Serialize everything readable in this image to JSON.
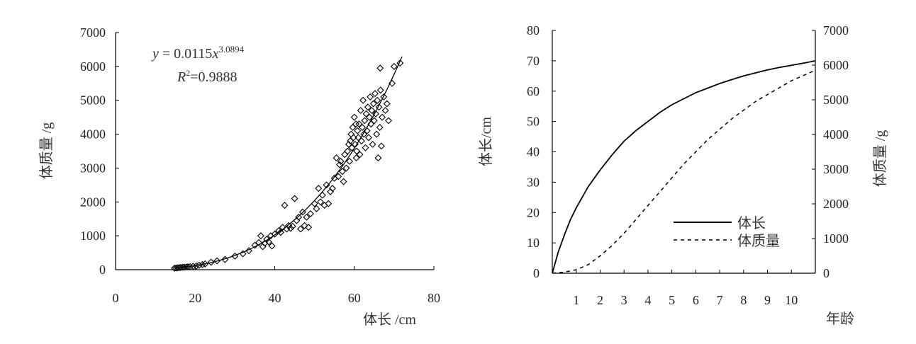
{
  "chart_data": [
    {
      "type": "scatter",
      "xlabel": "体长 /cm",
      "ylabel": "体质量 /g",
      "xlim": [
        0,
        80
      ],
      "ylim": [
        0,
        7000
      ],
      "xticks": [
        "0",
        "20",
        "40",
        "60",
        "80"
      ],
      "yticks": [
        "0",
        "1000",
        "2000",
        "3000",
        "4000",
        "5000",
        "6000",
        "7000"
      ],
      "equation_lhs": "y",
      "equation_eq": " = 0.0115",
      "equation_var": "x",
      "equation_exp": "3.0894",
      "r2_label": "R",
      "r2_exp": "2",
      "r2_value": "=0.9888",
      "fit": {
        "a": 0.0115,
        "b": 3.0894,
        "x_range": [
          15,
          72
        ]
      },
      "points": [
        [
          14.8,
          45
        ],
        [
          15.2,
          50
        ],
        [
          15.6,
          55
        ],
        [
          16,
          60
        ],
        [
          16.4,
          65
        ],
        [
          16.9,
          70
        ],
        [
          17.3,
          75
        ],
        [
          17.8,
          80
        ],
        [
          18.2,
          85
        ],
        [
          18.7,
          90
        ],
        [
          19.5,
          100
        ],
        [
          20.3,
          110
        ],
        [
          21,
          130
        ],
        [
          21.8,
          150
        ],
        [
          22.5,
          170
        ],
        [
          24,
          220
        ],
        [
          25.5,
          260
        ],
        [
          27.5,
          300
        ],
        [
          30,
          400
        ],
        [
          32,
          470
        ],
        [
          33.5,
          560
        ],
        [
          35,
          720
        ],
        [
          36,
          800
        ],
        [
          36.5,
          1000
        ],
        [
          37,
          680
        ],
        [
          37.5,
          780
        ],
        [
          38,
          900
        ],
        [
          38.5,
          820
        ],
        [
          39,
          1000
        ],
        [
          39.3,
          700
        ],
        [
          40,
          1050
        ],
        [
          41,
          1150
        ],
        [
          41.5,
          1100
        ],
        [
          42,
          1250
        ],
        [
          42.5,
          1900
        ],
        [
          43,
          1200
        ],
        [
          43.5,
          1300
        ],
        [
          44,
          1220
        ],
        [
          44.5,
          1280
        ],
        [
          45,
          2100
        ],
        [
          45.5,
          1450
        ],
        [
          46,
          1550
        ],
        [
          46.5,
          1200
        ],
        [
          47,
          1700
        ],
        [
          47.5,
          1300
        ],
        [
          48,
          1550
        ],
        [
          48.5,
          1250
        ],
        [
          49,
          1650
        ],
        [
          50,
          1950
        ],
        [
          50.5,
          1800
        ],
        [
          51,
          2400
        ],
        [
          51.5,
          2000
        ],
        [
          52,
          2200
        ],
        [
          52.5,
          1900
        ],
        [
          53,
          2500
        ],
        [
          53.5,
          1950
        ],
        [
          54,
          2300
        ],
        [
          54.5,
          2400
        ],
        [
          55,
          2700
        ],
        [
          55.5,
          3300
        ],
        [
          56,
          2750
        ],
        [
          56.3,
          3100
        ],
        [
          56.6,
          3200
        ],
        [
          57,
          2900
        ],
        [
          57.3,
          2600
        ],
        [
          57.6,
          3400
        ],
        [
          58,
          3000
        ],
        [
          58.3,
          3500
        ],
        [
          58.6,
          3700
        ],
        [
          58.8,
          3200
        ],
        [
          59,
          3800
        ],
        [
          59.2,
          4000
        ],
        [
          59.4,
          3600
        ],
        [
          59.6,
          4200
        ],
        [
          59.8,
          3900
        ],
        [
          60,
          4500
        ],
        [
          60.2,
          3700
        ],
        [
          60.4,
          4300
        ],
        [
          60.6,
          3500
        ],
        [
          60.8,
          4100
        ],
        [
          61,
          3900
        ],
        [
          61.2,
          4300
        ],
        [
          61.4,
          3400
        ],
        [
          61.6,
          4700
        ],
        [
          61.8,
          3800
        ],
        [
          62,
          4200
        ],
        [
          62.2,
          5000
        ],
        [
          62.4,
          4000
        ],
        [
          62.6,
          4400
        ],
        [
          62.8,
          3600
        ],
        [
          63,
          4600
        ],
        [
          63.2,
          4100
        ],
        [
          63.4,
          4800
        ],
        [
          63.6,
          3900
        ],
        [
          63.8,
          4500
        ],
        [
          64,
          5100
        ],
        [
          64.2,
          4300
        ],
        [
          64.4,
          4700
        ],
        [
          64.6,
          3700
        ],
        [
          64.8,
          4900
        ],
        [
          65,
          4400
        ],
        [
          65.2,
          5200
        ],
        [
          65.4,
          4600
        ],
        [
          65.6,
          4000
        ],
        [
          65.8,
          5000
        ],
        [
          66,
          3300
        ],
        [
          66.2,
          4800
        ],
        [
          66.4,
          4200
        ],
        [
          66.6,
          5300
        ],
        [
          66.8,
          3650
        ],
        [
          67,
          4500
        ],
        [
          67.4,
          5100
        ],
        [
          67.8,
          4700
        ],
        [
          68.2,
          4900
        ],
        [
          68.6,
          4400
        ],
        [
          69.5,
          5500
        ],
        [
          70,
          6000
        ],
        [
          71.5,
          6100
        ],
        [
          66.5,
          5950
        ],
        [
          60.5,
          3300
        ]
      ]
    },
    {
      "type": "line",
      "xlabel": "年龄",
      "ylabel_left": "体长/cm",
      "ylabel_right": "体质量 /g",
      "xlim": [
        0,
        11
      ],
      "ylim_left": [
        0,
        80
      ],
      "ylim_right": [
        0,
        7000
      ],
      "xticks": [
        "1",
        "2",
        "3",
        "4",
        "5",
        "6",
        "7",
        "8",
        "9",
        "10"
      ],
      "yticks_left": [
        "0",
        "10",
        "20",
        "30",
        "40",
        "50",
        "60",
        "70",
        "80"
      ],
      "yticks_right": [
        "0",
        "1000",
        "2000",
        "3000",
        "4000",
        "5000",
        "6000",
        "7000"
      ],
      "legend_position": "bottom-right",
      "series": [
        {
          "name": "体长",
          "axis": "left",
          "style": "solid",
          "x": [
            0,
            0.25,
            0.5,
            0.75,
            1,
            1.5,
            2,
            2.5,
            3,
            3.5,
            4,
            4.5,
            5,
            5.5,
            6,
            6.5,
            7,
            7.5,
            8,
            8.5,
            9,
            9.5,
            10,
            10.5,
            11
          ],
          "values": [
            0,
            7,
            12.5,
            17.5,
            21.5,
            28.5,
            34,
            39,
            43.5,
            47,
            50,
            53,
            55.5,
            57.5,
            59.5,
            61,
            62.5,
            63.8,
            65,
            66,
            67,
            67.8,
            68.5,
            69.2,
            70
          ]
        },
        {
          "name": "体质量",
          "axis": "right",
          "style": "dashed",
          "x": [
            0,
            0.5,
            1,
            1.5,
            2,
            2.5,
            3,
            3.5,
            4,
            4.5,
            5,
            5.5,
            6,
            6.5,
            7,
            7.5,
            8,
            8.5,
            9,
            9.5,
            10,
            10.5,
            11
          ],
          "values": [
            0,
            30,
            100,
            250,
            500,
            800,
            1150,
            1550,
            1950,
            2350,
            2750,
            3150,
            3500,
            3850,
            4150,
            4450,
            4700,
            4950,
            5150,
            5350,
            5550,
            5700,
            5850
          ]
        }
      ]
    }
  ]
}
